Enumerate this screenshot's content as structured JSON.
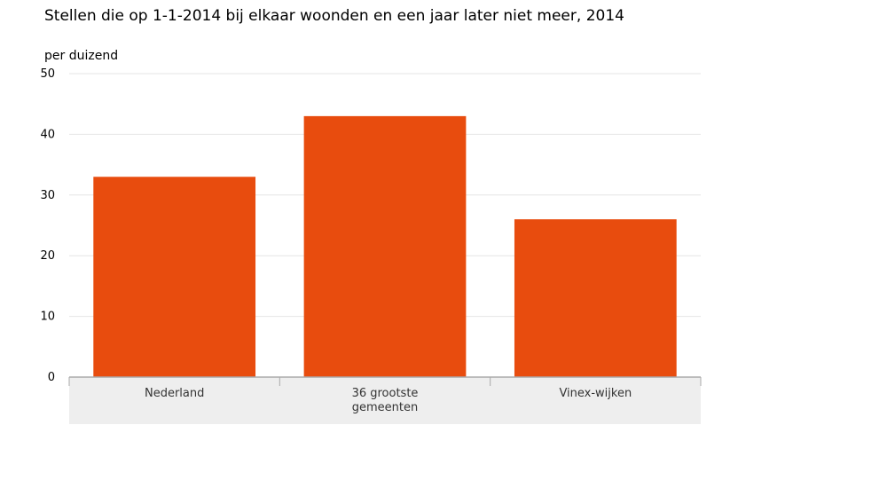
{
  "chart_data": {
    "type": "bar",
    "title": "Stellen die op 1-1-2014 bij elkaar woonden en een jaar later niet meer, 2014",
    "ylabel": "per duizend",
    "xlabel": "",
    "categories": [
      [
        "Nederland"
      ],
      [
        "36 grootste",
        "gemeenten"
      ],
      [
        "Vinex-wijken"
      ]
    ],
    "values": [
      33,
      43,
      26
    ],
    "ylim": [
      0,
      50
    ],
    "yticks": [
      0,
      10,
      20,
      30,
      40,
      50
    ],
    "grid": true,
    "colors": {
      "bar": "#e84c0e",
      "grid": "#e6e6e6",
      "axis": "#aaaaaa",
      "category_band": "#eeeeee"
    }
  }
}
